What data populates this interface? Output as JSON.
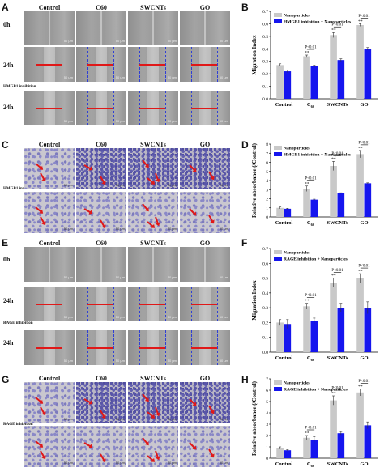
{
  "panels": {
    "A": {
      "letter": "A",
      "cols": [
        "Control",
        "C60",
        "SWCNTs",
        "GO"
      ],
      "rows": [
        "0h",
        "24h",
        "24h"
      ],
      "sublabel": "HMGB1 inhibition"
    },
    "C": {
      "letter": "C",
      "cols": [
        "Control",
        "C60",
        "SWCNTs",
        "GO"
      ],
      "sublabel": "HMGB1 inhibition"
    },
    "E": {
      "letter": "E",
      "cols": [
        "Control",
        "C60",
        "SWCNTs",
        "GO"
      ],
      "rows": [
        "0h",
        "24h",
        "24h"
      ],
      "sublabel": "RAGE inhibition"
    },
    "G": {
      "letter": "G",
      "cols": [
        "Control",
        "C60",
        "SWCNTs",
        "GO"
      ],
      "sublabel": "RAGE inhibition"
    }
  },
  "scale_bar_text": "50 μm",
  "colors": {
    "gray_bar": "#c9c9c9",
    "blue_bar": "#1515ee",
    "arrow": "#e01818",
    "dash": "#2f3fd6"
  },
  "chart_data": [
    {
      "panel": "B",
      "type": "bar",
      "categories": [
        "Control",
        "C60",
        "SWCNTs",
        "GO"
      ],
      "series": [
        {
          "name": "Nanoparticles",
          "values": [
            0.27,
            0.34,
            0.51,
            0.59
          ],
          "errors": [
            0.01,
            0.01,
            0.02,
            0.01
          ]
        },
        {
          "name": "HMGB1 inhibition + Nanoparticles",
          "values": [
            0.22,
            0.26,
            0.31,
            0.4
          ],
          "errors": [
            0.01,
            0.01,
            0.01,
            0.01
          ]
        }
      ],
      "ylabel": "Migration Index",
      "ylim": [
        0,
        0.7
      ],
      "yticks": [
        0.0,
        0.1,
        0.2,
        0.3,
        0.4,
        0.5,
        0.6,
        0.7
      ],
      "annotations": [
        {
          "cat": 1,
          "text": "**",
          "pair": "P<0.01"
        },
        {
          "cat": 2,
          "text": "**",
          "pair": "P<0.01"
        },
        {
          "cat": 3,
          "text": "**",
          "pair": "P<0.01"
        }
      ],
      "legend": "top-left"
    },
    {
      "panel": "D",
      "type": "bar",
      "categories": [
        "Control",
        "C60",
        "SWCNTs",
        "GO"
      ],
      "series": [
        {
          "name": "Nanoparticles",
          "values": [
            1.0,
            3.1,
            5.6,
            6.9
          ],
          "errors": [
            0.1,
            0.3,
            0.5,
            0.4
          ]
        },
        {
          "name": "HMGB1 inhibition + Nanoparticles",
          "values": [
            0.9,
            1.9,
            2.6,
            3.7
          ],
          "errors": [
            0.05,
            0.05,
            0.05,
            0.05
          ]
        }
      ],
      "ylabel": "Relative absorbance (/Control)",
      "ylim": [
        0,
        8
      ],
      "yticks": [
        0,
        1,
        2,
        3,
        4,
        5,
        6,
        7,
        8
      ],
      "annotations": [
        {
          "cat": 1,
          "text": "**",
          "pair": "P<0.01"
        },
        {
          "cat": 2,
          "text": "**",
          "pair": "P<0.01"
        },
        {
          "cat": 3,
          "text": "**",
          "pair": "P<0.01"
        }
      ],
      "legend": "top-left"
    },
    {
      "panel": "F",
      "type": "bar",
      "categories": [
        "Control",
        "C60",
        "SWCNTs",
        "GO"
      ],
      "series": [
        {
          "name": "Nanoparticles",
          "values": [
            0.2,
            0.31,
            0.47,
            0.5
          ],
          "errors": [
            0.02,
            0.02,
            0.03,
            0.03
          ]
        },
        {
          "name": "RAGE inhibition + Nanoparticles",
          "values": [
            0.19,
            0.21,
            0.3,
            0.3
          ],
          "errors": [
            0.03,
            0.02,
            0.03,
            0.04
          ]
        }
      ],
      "ylabel": "Migration Index",
      "ylim": [
        0,
        0.7
      ],
      "yticks": [
        0.0,
        0.1,
        0.2,
        0.3,
        0.4,
        0.5,
        0.6,
        0.7
      ],
      "annotations": [
        {
          "cat": 1,
          "text": "**",
          "pair": "P<0.01"
        },
        {
          "cat": 2,
          "text": "**",
          "pair": "P<0.01"
        },
        {
          "cat": 3,
          "text": "**",
          "pair": "P<0.01"
        }
      ],
      "legend": "top-left"
    },
    {
      "panel": "H",
      "type": "bar",
      "categories": [
        "Control",
        "C60",
        "SWCNTs",
        "GO"
      ],
      "series": [
        {
          "name": "Nanoparticles",
          "values": [
            0.9,
            1.8,
            5.1,
            5.8
          ],
          "errors": [
            0.1,
            0.2,
            0.4,
            0.3
          ]
        },
        {
          "name": "RAGE inhibition + Nanoparticles",
          "values": [
            0.7,
            1.6,
            2.2,
            2.9
          ],
          "errors": [
            0.05,
            0.3,
            0.15,
            0.3
          ]
        }
      ],
      "ylabel": "Relative absorbance (/Control)",
      "ylim": [
        0,
        7
      ],
      "yticks": [
        0,
        1,
        2,
        3,
        4,
        5,
        6,
        7
      ],
      "annotations": [
        {
          "cat": 1,
          "text": "**",
          "pair": "P<0.01"
        },
        {
          "cat": 2,
          "text": "**",
          "pair": "P<0.01"
        },
        {
          "cat": 3,
          "text": "**",
          "pair": "P<0.01"
        }
      ],
      "legend": "top-left"
    }
  ]
}
